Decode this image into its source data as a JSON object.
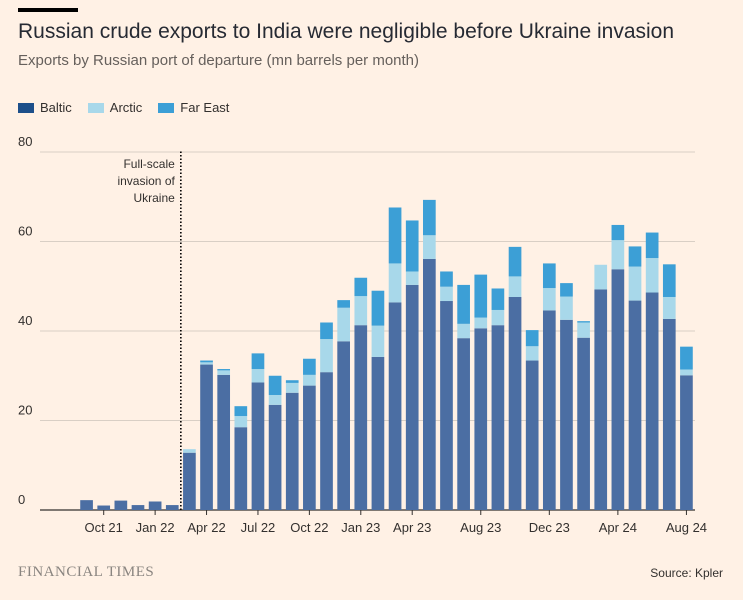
{
  "title": "Russian crude exports to India were negligible before Ukraine invasion",
  "subtitle": "Exports by Russian port of departure (mn barrels per month)",
  "brand": "FINANCIAL TIMES",
  "source": "Source: Kpler",
  "annotation": [
    "Full-scale",
    "invasion of",
    "Ukraine"
  ],
  "colors": {
    "Baltic": "#4b6ea3",
    "Arctic": "#a8d8ea",
    "Far East": "#3c9fd6",
    "grid": "#d9cfc5",
    "axis": "#33302e"
  },
  "chart_data": {
    "type": "bar",
    "stacked": true,
    "ylim": [
      0,
      80
    ],
    "yticks": [
      0,
      20,
      40,
      60,
      80
    ],
    "tick_labels": [
      "Oct 21",
      "Jan 22",
      "Apr 22",
      "Jul 22",
      "Oct 22",
      "Jan 23",
      "Apr 23",
      "Aug 23",
      "Dec 23",
      "Apr 24",
      "Aug 24"
    ],
    "tick_months": [
      "2021-10",
      "2022-01",
      "2022-04",
      "2022-07",
      "2022-10",
      "2023-01",
      "2023-04",
      "2023-08",
      "2023-12",
      "2024-04",
      "2024-08"
    ],
    "months": [
      "2021-09",
      "2021-10",
      "2021-11",
      "2021-12",
      "2022-01",
      "2022-02",
      "2022-03",
      "2022-04",
      "2022-05",
      "2022-06",
      "2022-07",
      "2022-08",
      "2022-09",
      "2022-10",
      "2022-11",
      "2022-12",
      "2023-01",
      "2023-02",
      "2023-03",
      "2023-04",
      "2023-05",
      "2023-06",
      "2023-07",
      "2023-08",
      "2023-09",
      "2023-10",
      "2023-11",
      "2023-12",
      "2024-01",
      "2024-02",
      "2024-03",
      "2024-04",
      "2024-05",
      "2024-06",
      "2024-07",
      "2024-08"
    ],
    "invasion_month": "2022-02",
    "series": [
      {
        "name": "Baltic",
        "values": [
          2.2,
          1.0,
          2.1,
          1.1,
          1.9,
          1.1,
          12.8,
          32.5,
          30.2,
          18.5,
          28.5,
          23.5,
          26.2,
          27.8,
          30.8,
          37.7,
          41.3,
          34.2,
          46.4,
          50.3,
          56.1,
          46.7,
          38.4,
          40.6,
          41.3,
          47.6,
          33.4,
          44.6,
          42.5,
          38.5,
          49.3,
          53.8,
          46.8,
          48.6,
          42.7,
          30.1
        ]
      },
      {
        "name": "Arctic",
        "values": [
          0,
          0,
          0,
          0,
          0,
          0,
          0.8,
          0.5,
          1.0,
          2.5,
          3.0,
          2.2,
          2.2,
          2.4,
          7.4,
          7.5,
          6.5,
          7.0,
          8.7,
          3.0,
          5.3,
          3.2,
          3.2,
          2.4,
          3.4,
          4.6,
          3.2,
          5.0,
          5.2,
          3.4,
          5.5,
          6.5,
          7.6,
          7.7,
          4.9,
          1.3
        ]
      },
      {
        "name": "Far East",
        "values": [
          0,
          0,
          0,
          0,
          0,
          0,
          0,
          0.4,
          0.3,
          2.2,
          3.5,
          4.3,
          0.6,
          3.6,
          3.7,
          1.7,
          4.1,
          7.8,
          12.5,
          11.4,
          7.9,
          3.4,
          8.7,
          9.6,
          4.8,
          6.6,
          3.6,
          5.5,
          3.0,
          0.3,
          0,
          3.4,
          4.5,
          5.7,
          7.3,
          5.1
        ]
      }
    ]
  }
}
